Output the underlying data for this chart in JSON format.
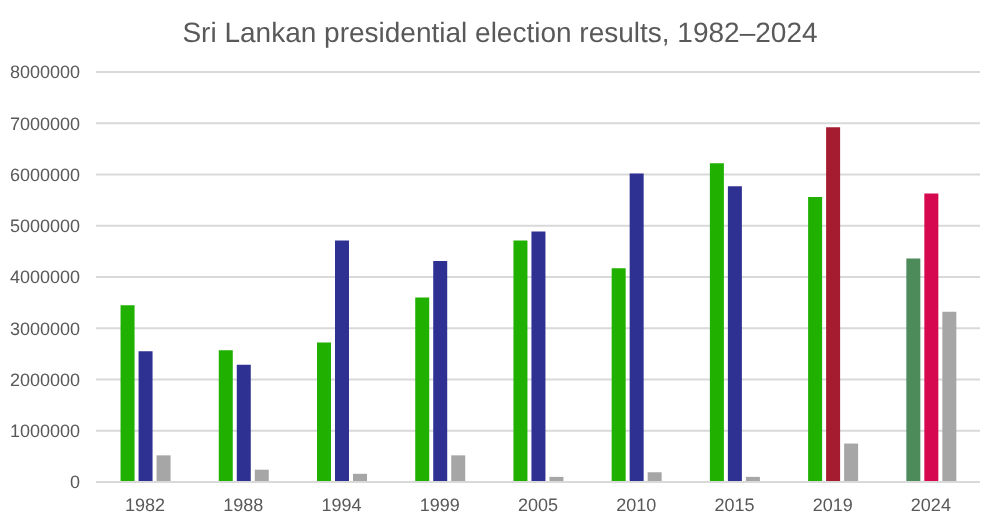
{
  "chart_data": {
    "type": "bar",
    "title": "Sri Lankan presidential election results, 1982–2024",
    "categories": [
      "1982",
      "1988",
      "1994",
      "1999",
      "2005",
      "2010",
      "2015",
      "2019",
      "2024"
    ],
    "series": [
      {
        "colors": [
          "#1fb000",
          "#1fb000",
          "#1fb000",
          "#1fb000",
          "#1fb000",
          "#1fb000",
          "#1fb000",
          "#1fb000",
          "#4e8b5a"
        ],
        "values": [
          3450000,
          2570000,
          2720000,
          3600000,
          4710000,
          4170000,
          6220000,
          5560000,
          4360000
        ]
      },
      {
        "colors": [
          "#2e3192",
          "#2e3192",
          "#2e3192",
          "#2e3192",
          "#2e3192",
          "#2e3192",
          "#2e3192",
          "#a51c30",
          "#d6084f"
        ],
        "values": [
          2550000,
          2290000,
          4710000,
          4310000,
          4890000,
          6020000,
          5770000,
          6920000,
          5630000
        ]
      },
      {
        "colors": [
          "#a6a6a6",
          "#a6a6a6",
          "#a6a6a6",
          "#a6a6a6",
          "#a6a6a6",
          "#a6a6a6",
          "#a6a6a6",
          "#a6a6a6",
          "#a6a6a6"
        ],
        "values": [
          520000,
          240000,
          160000,
          520000,
          100000,
          190000,
          100000,
          750000,
          3320000
        ]
      }
    ],
    "ylim": [
      0,
      8000000
    ],
    "yticks": [
      0,
      1000000,
      2000000,
      3000000,
      4000000,
      5000000,
      6000000,
      7000000,
      8000000
    ],
    "grid": "y",
    "legend": false
  }
}
